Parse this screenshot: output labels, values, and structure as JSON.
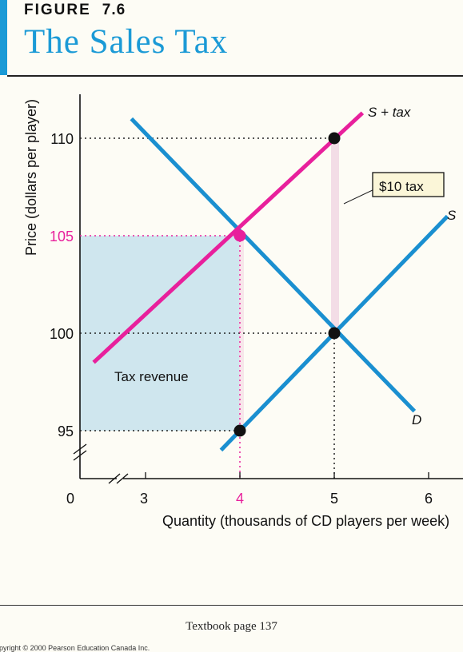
{
  "figure": {
    "label": "FIGURE",
    "number": "7.6",
    "title": "The Sales Tax"
  },
  "footer": {
    "page": "Textbook page 137",
    "copyright": "opyright © 2000 Pearson Education Canada Inc."
  },
  "colors": {
    "blue": "#1a8fd0",
    "magenta": "#e8209c",
    "revenue_fill": "#cfe6ee",
    "tax_wedge": "#f3dde6",
    "title_blue": "#1b9ad6"
  },
  "chart_data": {
    "type": "line",
    "xlabel": "Quantity (thousands of CD players per week)",
    "ylabel": "Price (dollars per player)",
    "x_ticks": [
      "0",
      "3",
      "4",
      "5",
      "6"
    ],
    "y_ticks": [
      "95",
      "100",
      "105",
      "110"
    ],
    "xlim": [
      2,
      6.4
    ],
    "ylim": [
      92,
      112
    ],
    "axis_breaks": [
      "x",
      "y"
    ],
    "series": [
      {
        "name": "S",
        "color": "#1a8fd0",
        "x": [
          3.8,
          6.2
        ],
        "y": [
          94,
          106
        ]
      },
      {
        "name": "D",
        "color": "#1a8fd0",
        "x": [
          2.85,
          5.85
        ],
        "y": [
          111,
          96
        ]
      },
      {
        "name": "S + tax",
        "color": "#e8209c",
        "x": [
          2.45,
          5.3
        ],
        "y": [
          98.5,
          111.3
        ]
      }
    ],
    "points": [
      {
        "x": 5,
        "y": 110,
        "color": "#111111"
      },
      {
        "x": 4,
        "y": 105,
        "color": "#e8209c"
      },
      {
        "x": 5,
        "y": 100,
        "color": "#111111"
      },
      {
        "x": 4,
        "y": 95,
        "color": "#111111"
      }
    ],
    "highlighted": {
      "x_tick": "4",
      "y_tick": "105",
      "color": "#e8209c"
    },
    "shaded_region": {
      "label": "Tax revenue",
      "x": [
        2,
        4
      ],
      "y": [
        95,
        105
      ]
    },
    "annotations": [
      {
        "text": "$10  tax",
        "boxed": true,
        "x": 5,
        "y_range": [
          100,
          110
        ]
      }
    ]
  }
}
